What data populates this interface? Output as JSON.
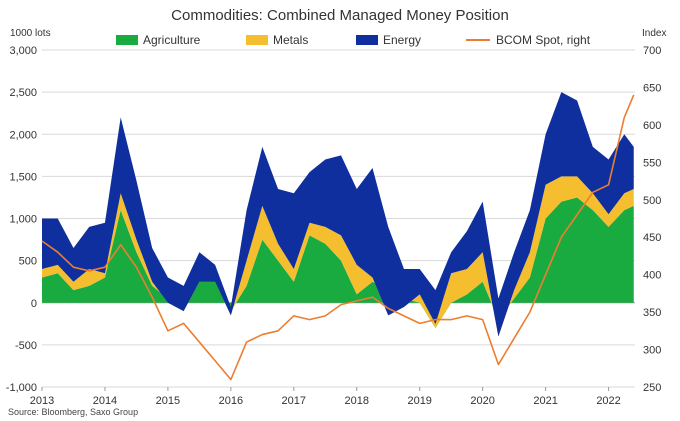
{
  "chart_data": {
    "type": "area",
    "title": "Commodities: Combined Managed Money Position",
    "left_axis_unit": "1000 lots",
    "right_axis_unit": "Index",
    "source": "Source: Bloomberg, Saxo Group",
    "left_ylim": [
      -1000,
      3000
    ],
    "left_ticks": [
      "-1,000",
      "-500",
      "0",
      "500",
      "1,000",
      "1,500",
      "2,000",
      "2,500",
      "3,000"
    ],
    "right_ylim": [
      250,
      700
    ],
    "right_ticks": [
      "250",
      "300",
      "350",
      "400",
      "450",
      "500",
      "550",
      "600",
      "650",
      "700"
    ],
    "xlim": [
      2013.0,
      2022.42
    ],
    "x_ticks": [
      "2013",
      "2014",
      "2015",
      "2016",
      "2017",
      "2018",
      "2019",
      "2020",
      "2021",
      "2022"
    ],
    "legend_position": "top",
    "grid": "horizontal",
    "x": [
      2013.0,
      2013.25,
      2013.5,
      2013.75,
      2014.0,
      2014.25,
      2014.5,
      2014.75,
      2015.0,
      2015.25,
      2015.5,
      2015.75,
      2016.0,
      2016.25,
      2016.5,
      2016.75,
      2017.0,
      2017.25,
      2017.5,
      2017.75,
      2018.0,
      2018.25,
      2018.5,
      2018.75,
      2019.0,
      2019.25,
      2019.5,
      2019.75,
      2020.0,
      2020.25,
      2020.5,
      2020.75,
      2021.0,
      2021.25,
      2021.5,
      2021.75,
      2022.0,
      2022.25,
      2022.4
    ],
    "series": [
      {
        "name": "Agriculture",
        "kind": "stacked-area",
        "color": "#1aab40",
        "values": [
          300,
          350,
          150,
          200,
          300,
          1100,
          600,
          200,
          50,
          -50,
          400,
          300,
          -100,
          200,
          750,
          500,
          250,
          800,
          700,
          500,
          100,
          250,
          150,
          50,
          0,
          -300,
          0,
          100,
          250,
          -200,
          50,
          300,
          1000,
          1200,
          1250,
          1100,
          900,
          1100,
          1150
        ]
      },
      {
        "name": "Metals",
        "kind": "stacked-area",
        "color": "#f5be2e",
        "values": [
          100,
          100,
          100,
          200,
          50,
          200,
          150,
          50,
          -50,
          -50,
          -150,
          -50,
          -50,
          300,
          400,
          200,
          150,
          150,
          200,
          300,
          350,
          50,
          -300,
          -100,
          100,
          50,
          350,
          300,
          350,
          -200,
          100,
          300,
          400,
          300,
          250,
          200,
          150,
          200,
          200
        ]
      },
      {
        "name": "Energy",
        "kind": "stacked-area",
        "color": "#0f2f9e",
        "values": [
          600,
          550,
          400,
          500,
          600,
          900,
          700,
          400,
          300,
          300,
          350,
          200,
          100,
          600,
          700,
          650,
          900,
          600,
          800,
          950,
          900,
          1300,
          1050,
          450,
          300,
          400,
          250,
          450,
          600,
          450,
          450,
          500,
          600,
          1000,
          900,
          550,
          650,
          700,
          500
        ]
      },
      {
        "name": "BCOM Spot, right",
        "kind": "line",
        "axis": "right",
        "color": "#ed7d31",
        "values": [
          445,
          430,
          410,
          405,
          410,
          440,
          410,
          370,
          325,
          335,
          310,
          285,
          260,
          310,
          320,
          325,
          345,
          340,
          345,
          360,
          365,
          370,
          355,
          345,
          335,
          340,
          340,
          345,
          340,
          280,
          315,
          350,
          400,
          450,
          480,
          510,
          520,
          610,
          640
        ]
      }
    ]
  }
}
